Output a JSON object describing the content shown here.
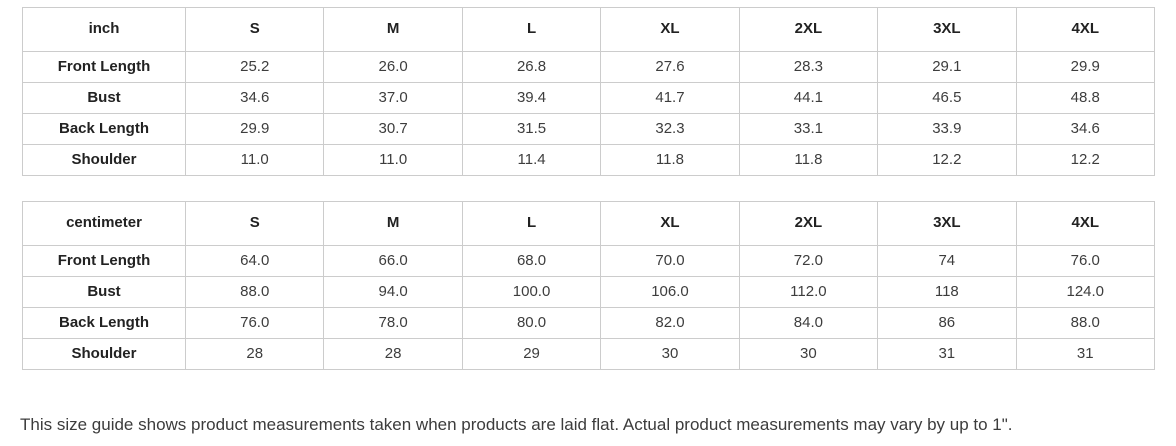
{
  "tables": [
    {
      "unit_label": "inch",
      "sizes": [
        "S",
        "M",
        "L",
        "XL",
        "2XL",
        "3XL",
        "4XL"
      ],
      "rows": [
        {
          "label": "Front Length",
          "values": [
            "25.2",
            "26.0",
            "26.8",
            "27.6",
            "28.3",
            "29.1",
            "29.9"
          ]
        },
        {
          "label": "Bust",
          "values": [
            "34.6",
            "37.0",
            "39.4",
            "41.7",
            "44.1",
            "46.5",
            "48.8"
          ]
        },
        {
          "label": "Back Length",
          "values": [
            "29.9",
            "30.7",
            "31.5",
            "32.3",
            "33.1",
            "33.9",
            "34.6"
          ]
        },
        {
          "label": "Shoulder",
          "values": [
            "11.0",
            "11.0",
            "11.4",
            "11.8",
            "11.8",
            "12.2",
            "12.2"
          ]
        }
      ]
    },
    {
      "unit_label": "centimeter",
      "sizes": [
        "S",
        "M",
        "L",
        "XL",
        "2XL",
        "3XL",
        "4XL"
      ],
      "rows": [
        {
          "label": "Front Length",
          "values": [
            "64.0",
            "66.0",
            "68.0",
            "70.0",
            "72.0",
            "74",
            "76.0"
          ]
        },
        {
          "label": "Bust",
          "values": [
            "88.0",
            "94.0",
            "100.0",
            "106.0",
            "112.0",
            "118",
            "124.0"
          ]
        },
        {
          "label": "Back Length",
          "values": [
            "76.0",
            "78.0",
            "80.0",
            "82.0",
            "84.0",
            "86",
            "88.0"
          ]
        },
        {
          "label": "Shoulder",
          "values": [
            "28",
            "28",
            "29",
            "30",
            "30",
            "31",
            "31"
          ]
        }
      ]
    }
  ],
  "footnote": "This size guide shows product measurements taken when products are laid flat. Actual product measurements may vary by up to 1\"."
}
